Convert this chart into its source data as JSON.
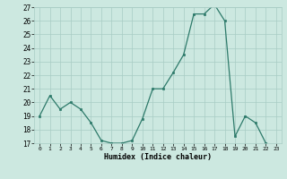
{
  "x": [
    0,
    1,
    2,
    3,
    4,
    5,
    6,
    7,
    8,
    9,
    10,
    11,
    12,
    13,
    14,
    15,
    16,
    17,
    18,
    19,
    20,
    21,
    22,
    23
  ],
  "y": [
    19.0,
    20.5,
    19.5,
    20.0,
    19.5,
    18.5,
    17.2,
    17.0,
    17.0,
    17.2,
    18.8,
    21.0,
    21.0,
    22.2,
    23.5,
    26.5,
    26.5,
    27.2,
    26.0,
    17.5,
    19.0,
    18.5,
    17.0,
    16.8
  ],
  "ylim": [
    17,
    27
  ],
  "yticks": [
    17,
    18,
    19,
    20,
    21,
    22,
    23,
    24,
    25,
    26,
    27
  ],
  "xticks": [
    0,
    1,
    2,
    3,
    4,
    5,
    6,
    7,
    8,
    9,
    10,
    11,
    12,
    13,
    14,
    15,
    16,
    17,
    18,
    19,
    20,
    21,
    22,
    23
  ],
  "xlabel": "Humidex (Indice chaleur)",
  "line_color": "#2d7a6a",
  "marker_color": "#2d7a6a",
  "bg_color": "#cce8e0",
  "grid_color": "#a8ccc4",
  "title": ""
}
